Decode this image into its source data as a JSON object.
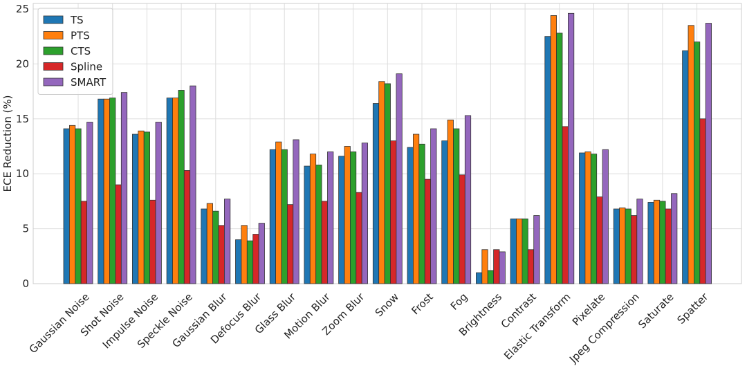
{
  "chart_data": {
    "type": "bar",
    "title": "",
    "xlabel": "",
    "ylabel": "ECE Reduction (%)",
    "ylim": [
      0,
      25.5
    ],
    "yticks": [
      0,
      5,
      10,
      15,
      20,
      25
    ],
    "grid": true,
    "legend_position": "top-left",
    "categories": [
      "Gaussian Noise",
      "Shot Noise",
      "Impulse Noise",
      "Speckle Noise",
      "Gaussian Blur",
      "Defocus Blur",
      "Glass Blur",
      "Motion Blur",
      "Zoom Blur",
      "Snow",
      "Frost",
      "Fog",
      "Brightness",
      "Contrast",
      "Elastic Transform",
      "Pixelate",
      "Jpeg Compression",
      "Saturate",
      "Spatter"
    ],
    "series": [
      {
        "name": "TS",
        "color": "#1f77b4",
        "values": [
          14.1,
          16.8,
          13.6,
          16.9,
          6.8,
          4.0,
          12.2,
          10.7,
          11.6,
          16.4,
          12.4,
          13.0,
          1.0,
          5.9,
          22.5,
          11.9,
          6.8,
          7.4,
          21.2
        ]
      },
      {
        "name": "PTS",
        "color": "#ff7f0e",
        "values": [
          14.4,
          16.8,
          13.9,
          16.9,
          7.3,
          5.3,
          12.9,
          11.8,
          12.5,
          18.4,
          13.6,
          14.9,
          3.1,
          5.9,
          24.4,
          12.0,
          6.9,
          7.6,
          23.5
        ]
      },
      {
        "name": "CTS",
        "color": "#2ca02c",
        "values": [
          14.1,
          16.9,
          13.8,
          17.6,
          6.6,
          3.9,
          12.2,
          10.8,
          12.0,
          18.2,
          12.7,
          14.1,
          1.2,
          5.9,
          22.8,
          11.8,
          6.8,
          7.5,
          22.0
        ]
      },
      {
        "name": "Spline",
        "color": "#d62728",
        "values": [
          7.5,
          9.0,
          7.6,
          10.3,
          5.3,
          4.5,
          7.2,
          7.5,
          8.3,
          13.0,
          9.5,
          9.9,
          3.1,
          3.1,
          14.3,
          7.9,
          6.2,
          6.8,
          15.0
        ]
      },
      {
        "name": "SMART",
        "color": "#9467bd",
        "values": [
          14.7,
          17.4,
          14.7,
          18.0,
          7.7,
          5.5,
          13.1,
          12.0,
          12.8,
          19.1,
          14.1,
          15.3,
          2.9,
          6.2,
          24.6,
          12.2,
          7.7,
          8.2,
          23.7
        ]
      }
    ]
  }
}
